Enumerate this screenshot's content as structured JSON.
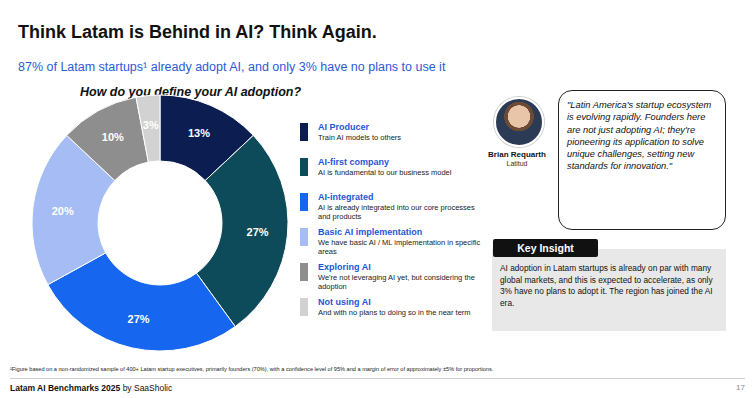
{
  "header": {
    "title": "Think Latam is Behind in AI? Think Again.",
    "subtitle": "87% of Latam startups¹ already adopt AI, and only 3% have no plans to use it"
  },
  "chart_data": {
    "type": "pie",
    "title": "How do you define your AI adoption?",
    "categories": [
      "AI Producer",
      "AI-first company",
      "AI-integrated",
      "Basic AI implementation",
      "Exploring AI",
      "Not using AI"
    ],
    "descriptions": [
      "Train AI models to others",
      "AI is fundamental to our business model",
      "AI is already integrated into our core processes and products",
      "We have basic AI / ML implementation in specific areas",
      "We're not leveraging AI yet, but considering the adoption",
      "And with no plans to doing so in the near term"
    ],
    "values": [
      13,
      27,
      27,
      20,
      10,
      3
    ],
    "value_labels": [
      "13%",
      "27%",
      "27%",
      "20%",
      "10%",
      "3%"
    ],
    "colors": [
      "#0b1d51",
      "#0d4b5b",
      "#1766f0",
      "#a5bdf4",
      "#8e8e8e",
      "#d2d2d2"
    ],
    "data_labels": true
  },
  "quote": {
    "text": "\"Latin America's startup ecosystem is evolving rapidly. Founders here are not just adopting AI; they're pioneering its application to solve unique challenges, setting new standards for innovation.\"",
    "person": "Brian Requarth",
    "company": "Latitud"
  },
  "key_insight": {
    "heading": "Key Insight",
    "text": "AI adoption in Latam startups is already on par with many global markets, and this is expected to accelerate, as only 3% have no plans to adopt it. The region has joined the AI era."
  },
  "footnote": "¹Figure based on a non-randomized sample of 400+ Latam startup executives, primarily founders (70%), with a confidence level of 95% and a margin of error of approximately ±5% for proportions.",
  "footer": {
    "report": "Latam AI Benchmarks 2025",
    "by": "by SaaSholic",
    "page": "17"
  }
}
